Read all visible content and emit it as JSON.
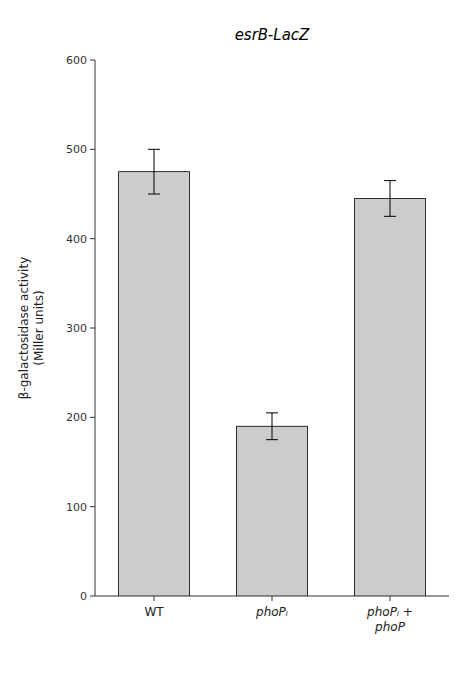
{
  "chart_data": {
    "type": "bar",
    "title": "esrB-LacZ",
    "categories": [
      "WT",
      "phoPᵢ",
      "phoPᵢ +\nphoP"
    ],
    "values": [
      475,
      190,
      445
    ],
    "errors": [
      25,
      15,
      20
    ],
    "color": "#cccccc",
    "ylim": [
      0,
      600
    ],
    "yticks": [
      0,
      100,
      200,
      300,
      400,
      500,
      600
    ],
    "ylabel": "β-galactosidase activity\n(Miller units)"
  }
}
